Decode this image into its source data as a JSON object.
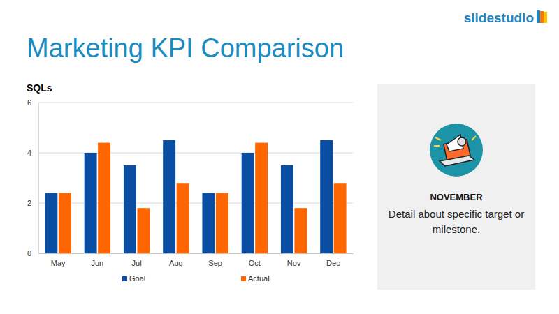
{
  "header": {
    "title": "Marketing KPI Comparison",
    "logo": "slidestudio"
  },
  "panel": {
    "heading": "NOVEMBER",
    "text": "Detail about specific target or milestone."
  },
  "chart_data": {
    "type": "bar",
    "title": "SQLs",
    "categories": [
      "May",
      "Jun",
      "Jul",
      "Aug",
      "Sep",
      "Oct",
      "Nov",
      "Dec"
    ],
    "series": [
      {
        "name": "Goal",
        "color": "#0a4ea3",
        "values": [
          2.4,
          4,
          3.5,
          4.5,
          2.4,
          4,
          3.5,
          4.5
        ]
      },
      {
        "name": "Actual",
        "color": "#ff6600",
        "values": [
          2.4,
          4.4,
          1.8,
          2.8,
          2.4,
          4.4,
          1.8,
          2.8
        ]
      }
    ],
    "ylim": [
      0,
      6
    ],
    "yticks": [
      0,
      2,
      4,
      6
    ],
    "grid": true,
    "legend": "bottom"
  }
}
